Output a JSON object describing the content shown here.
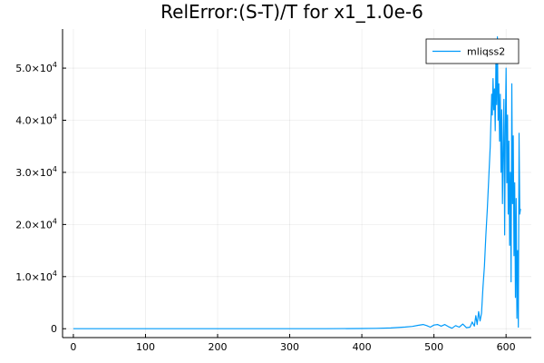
{
  "chart_data": {
    "type": "line",
    "title": "RelError:(S-T)/T for x1_1.0e-6",
    "xlabel": "",
    "ylabel": "",
    "xlim": [
      -15,
      635
    ],
    "ylim": [
      -1700,
      57500
    ],
    "grid": true,
    "legend_position": "top-right",
    "x_ticks": [
      {
        "value": 0,
        "label": "0"
      },
      {
        "value": 100,
        "label": "100"
      },
      {
        "value": 200,
        "label": "200"
      },
      {
        "value": 300,
        "label": "300"
      },
      {
        "value": 400,
        "label": "400"
      },
      {
        "value": 500,
        "label": "500"
      },
      {
        "value": 600,
        "label": "600"
      }
    ],
    "y_ticks": [
      {
        "value": 0,
        "mantissa": "0",
        "exponent": ""
      },
      {
        "value": 10000,
        "mantissa": "1.0×10",
        "exponent": "4"
      },
      {
        "value": 20000,
        "mantissa": "2.0×10",
        "exponent": "4"
      },
      {
        "value": 30000,
        "mantissa": "3.0×10",
        "exponent": "4"
      },
      {
        "value": 40000,
        "mantissa": "4.0×10",
        "exponent": "4"
      },
      {
        "value": 50000,
        "mantissa": "5.0×10",
        "exponent": "4"
      }
    ],
    "series": [
      {
        "name": "mliqss2",
        "color": "#009AFA",
        "x": [
          0,
          50,
          100,
          150,
          200,
          250,
          300,
          350,
          400,
          420,
          440,
          450,
          460,
          470,
          478,
          485,
          490,
          495,
          500,
          505,
          510,
          515,
          520,
          525,
          530,
          535,
          540,
          545,
          550,
          553,
          556,
          558,
          560,
          562,
          564,
          566,
          568,
          570,
          572,
          574,
          576,
          578,
          580,
          581,
          582,
          583,
          584,
          585,
          586,
          587,
          588,
          589,
          590,
          591,
          592,
          593,
          594,
          595,
          596,
          597,
          598,
          599,
          600,
          601,
          602,
          603,
          604,
          605,
          606,
          607,
          608,
          609,
          610,
          611,
          612,
          613,
          614,
          615,
          616,
          617,
          618,
          619,
          620
        ],
        "y": [
          0,
          0,
          0,
          0,
          0,
          0,
          0,
          10,
          40,
          80,
          150,
          230,
          320,
          450,
          650,
          800,
          600,
          300,
          700,
          800,
          500,
          800,
          400,
          100,
          600,
          300,
          900,
          200,
          300,
          1300,
          500,
          2500,
          800,
          3300,
          1500,
          3000,
          8000,
          12000,
          18000,
          23000,
          29000,
          35000,
          45000,
          41000,
          48000,
          42000,
          46000,
          38000,
          52000,
          43000,
          56000,
          40000,
          47000,
          36000,
          45000,
          30000,
          42000,
          24000,
          34000,
          44000,
          18000,
          39000,
          50000,
          28000,
          41000,
          22000,
          36000,
          16000,
          30000,
          9000,
          47000,
          24000,
          37000,
          14000,
          28000,
          6000,
          25000,
          2000,
          15000,
          300,
          37500,
          22000,
          23000
        ]
      }
    ]
  }
}
